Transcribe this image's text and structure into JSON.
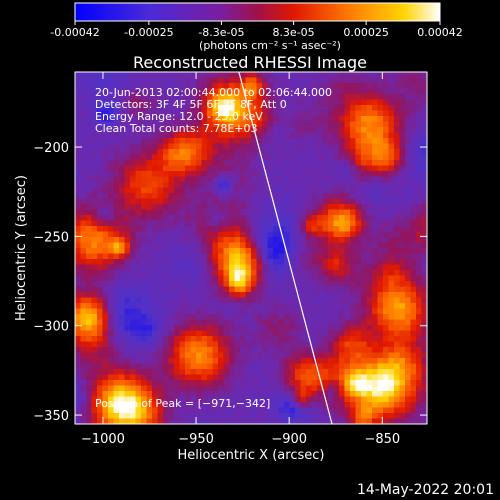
{
  "chart_data": {
    "type": "heatmap",
    "title": "Reconstructed RHESSI Image",
    "xlabel": "Heliocentric X (arcsec)",
    "ylabel": "Heliocentric Y (arcsec)",
    "xlim": [
      -1015,
      -826
    ],
    "ylim": [
      -355,
      -158
    ],
    "x_ticks": [
      -1000,
      -950,
      -900,
      -850
    ],
    "x_tick_labels": [
      "−1000",
      "−950",
      "−900",
      "−850"
    ],
    "y_ticks": [
      -200,
      -250,
      -300,
      -350
    ],
    "y_tick_labels": [
      "−200",
      "−250",
      "−300",
      "−350"
    ],
    "colorbar": {
      "range": [
        -0.00042,
        0.00042
      ],
      "tick_values": [
        -0.00042,
        -0.00025,
        -8.3e-05,
        8.3e-05,
        0.00025,
        0.00042
      ],
      "tick_labels": [
        "-0.00042",
        "-0.00025",
        "-8.3e-05",
        "8.3e-05",
        "0.00025",
        "0.00042"
      ],
      "units_label": "(photons cm⁻² s⁻¹ asec⁻²)",
      "colormap": [
        "#0000ff",
        "#6a2fc0",
        "#8a1f8a",
        "#c0001a",
        "#ff3000",
        "#ff9000",
        "#ffd200",
        "#ffffff"
      ]
    },
    "info_lines": [
      "20-Jun-2013 02:00:44.000 to 02:06:44.000",
      "Detectors: 3F 4F 5F 6F 7F 8F, Att 0",
      "Energy Range: 12.0 - 25.0 keV",
      "Clean    Total counts: 7.78E+03"
    ],
    "peak_label": "Position of Peak = [−971,−342]",
    "limb_line": [
      [
        -927,
        -158
      ],
      [
        -877,
        -355
      ]
    ],
    "peak_position": [
      -971,
      -342
    ]
  },
  "footer": {
    "timestamp": "14-May-2022 20:01"
  }
}
